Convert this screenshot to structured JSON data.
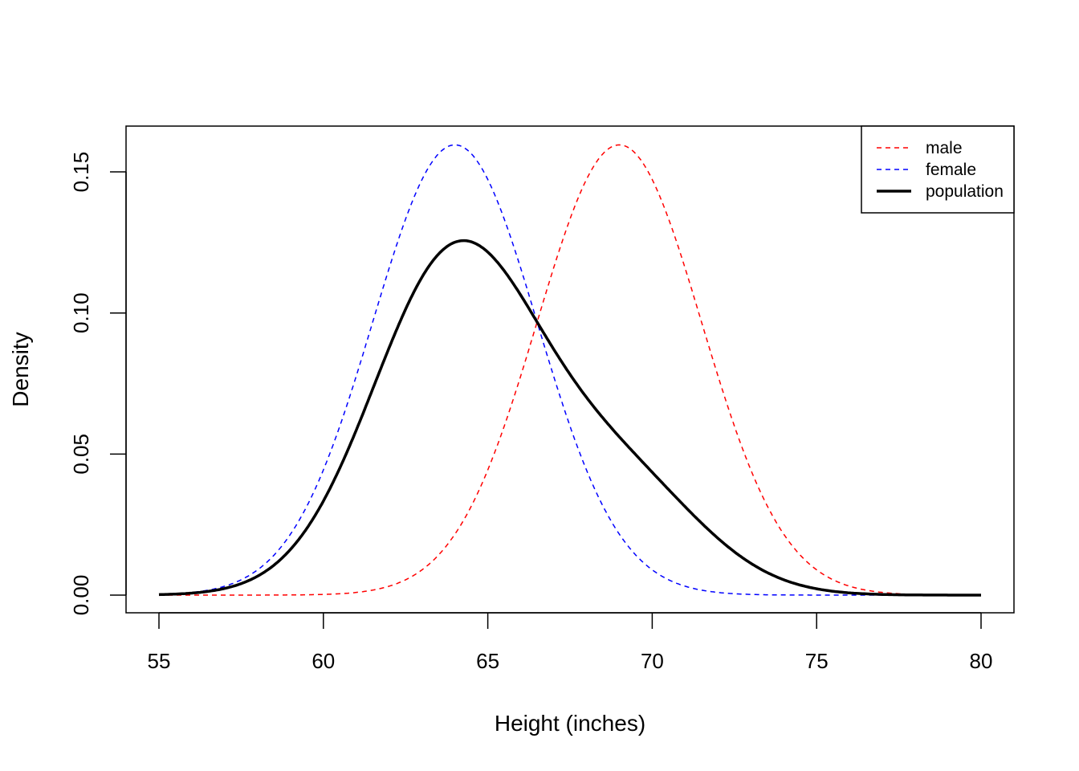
{
  "chart_data": {
    "type": "line",
    "title": "",
    "xlabel": "Height (inches)",
    "ylabel": "Density",
    "xlim": [
      55,
      80
    ],
    "ylim": [
      0,
      0.1596
    ],
    "x_ticks": [
      "55",
      "60",
      "65",
      "70",
      "75",
      "80"
    ],
    "y_ticks": [
      "0.00",
      "0.05",
      "0.10",
      "0.15"
    ],
    "grid": false,
    "legend_position": "top-right",
    "series": [
      {
        "name": "male",
        "color": "#ff0000",
        "style": "dashed",
        "distribution": "normal",
        "mean": 69,
        "sd": 2.5,
        "peak_density": 0.1596
      },
      {
        "name": "female",
        "color": "#0000ff",
        "style": "dashed",
        "distribution": "normal",
        "mean": 64,
        "sd": 2.5,
        "peak_density": 0.1596
      },
      {
        "name": "population",
        "color": "#000000",
        "style": "solid",
        "distribution": "mixture",
        "weights": {
          "female": 0.75,
          "male": 0.25
        },
        "peak_x": 64.3,
        "peak_density": 0.126
      }
    ]
  }
}
